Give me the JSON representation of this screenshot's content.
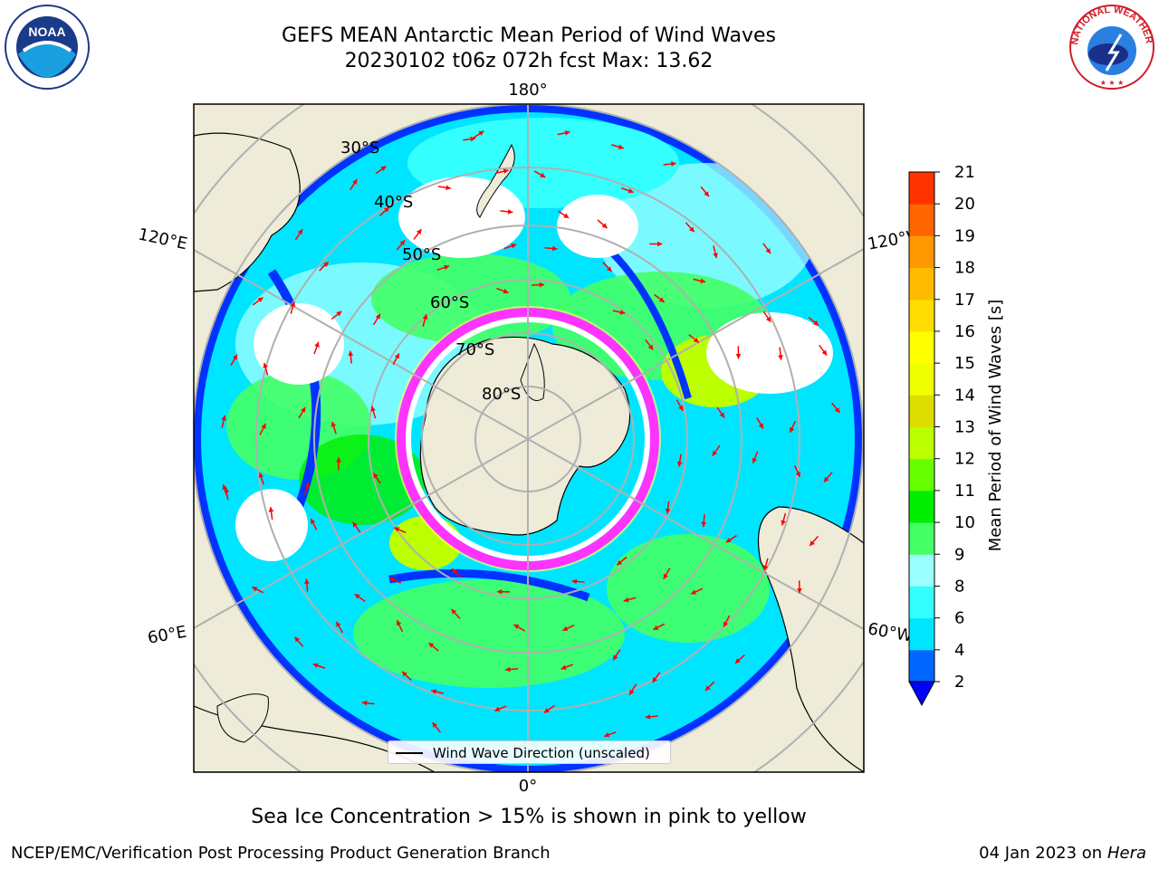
{
  "header": {
    "title_line1": "GEFS MEAN Antarctic Mean Period of Wind Waves",
    "title_line2": "20230102 t06z 072h fcst   Max: 13.62"
  },
  "map": {
    "longitude_labels": {
      "top": "180°",
      "bottom": "0°",
      "left_upper": "120°E",
      "left_lower": "60°E",
      "right_upper": "120°W",
      "right_lower": "60°W"
    },
    "latitude_labels": [
      "30°S",
      "40°S",
      "50°S",
      "60°S",
      "70°S",
      "80°S"
    ],
    "legend_label": "Wind Wave Direction (unscaled)",
    "colors": {
      "land": "#eeebd9",
      "ice_high": "#ff33ff",
      "ice_low": "#ffff66",
      "arrow": "#ff0000",
      "gridline": "#b0b0b0"
    }
  },
  "colorbar": {
    "label": "Mean Period of Wind Waves [s]",
    "ticks": [
      "2",
      "4",
      "6",
      "8",
      "9",
      "10",
      "11",
      "12",
      "13",
      "14",
      "15",
      "16",
      "17",
      "18",
      "19",
      "20",
      "21"
    ],
    "colors": [
      "#0066ff",
      "#00e5ff",
      "#33ffff",
      "#99ffff",
      "#44ff66",
      "#00ee00",
      "#66ff00",
      "#bbff00",
      "#dddd00",
      "#eeff00",
      "#ffff00",
      "#ffdd00",
      "#ffbb00",
      "#ff9900",
      "#ff6600",
      "#ff3300"
    ],
    "under_color": "#0000ff"
  },
  "footer": {
    "note": "Sea Ice Concentration > 15% is shown in pink to yellow",
    "credit_left": "NCEP/EMC/Verification Post Processing Product Generation Branch",
    "date": "04 Jan 2023 on",
    "machine": "Hera"
  },
  "logos": {
    "noaa_text": "NOAA",
    "nws_text": "NATIONAL WEATHER SERVICE"
  }
}
